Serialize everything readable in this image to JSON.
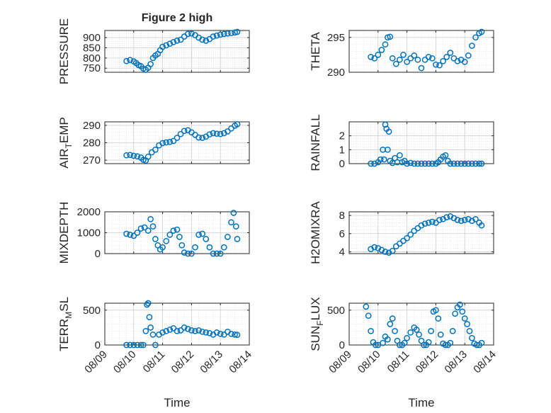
{
  "figure": {
    "title": "Figure 2 high",
    "xlabel": "Time",
    "xticks": [
      "08/09",
      "08/10",
      "08/11",
      "08/12",
      "08/13",
      "08/14"
    ]
  },
  "colors": {
    "marker": "#0072BD",
    "axis": "#262626",
    "grid": "#dcdcdc",
    "background": "#ffffff"
  },
  "chart_data": [
    {
      "type": "scatter",
      "ylabel": "PRESSURE",
      "ylabel_sub": "",
      "ylabel_suffix": "",
      "ylim": [
        730,
        935
      ],
      "yticks": [
        750,
        800,
        850,
        900
      ],
      "grid": true,
      "x": [
        "08/09 18:00",
        "08/09 21:00",
        "08/10 00:00",
        "08/10 02:00",
        "08/10 04:00",
        "08/10 06:00",
        "08/10 08:00",
        "08/10 10:00",
        "08/10 12:00",
        "08/10 14:00",
        "08/10 16:00",
        "08/10 18:00",
        "08/10 20:00",
        "08/10 22:00",
        "08/11 00:00",
        "08/11 03:00",
        "08/11 06:00",
        "08/11 09:00",
        "08/11 12:00",
        "08/11 15:00",
        "08/11 18:00",
        "08/11 21:00",
        "08/12 00:00",
        "08/12 03:00",
        "08/12 06:00",
        "08/12 09:00",
        "08/12 12:00",
        "08/12 15:00",
        "08/12 18:00",
        "08/12 21:00",
        "08/13 00:00",
        "08/13 03:00",
        "08/13 06:00",
        "08/13 09:00",
        "08/13 12:00",
        "08/13 14:00"
      ],
      "y": [
        785,
        790,
        783,
        775,
        765,
        760,
        748,
        742,
        752,
        770,
        800,
        812,
        820,
        838,
        855,
        862,
        870,
        878,
        885,
        890,
        905,
        918,
        920,
        912,
        900,
        890,
        885,
        893,
        905,
        910,
        915,
        918,
        920,
        922,
        925,
        928
      ]
    },
    {
      "type": "scatter",
      "ylabel": "THETA",
      "ylabel_sub": "",
      "ylabel_suffix": "",
      "ylim": [
        290,
        296
      ],
      "yticks": [
        290,
        295
      ],
      "grid": true,
      "x": [
        "08/09 18:00",
        "08/09 21:00",
        "08/10 00:00",
        "08/10 03:00",
        "08/10 06:00",
        "08/10 08:00",
        "08/10 10:00",
        "08/10 12:00",
        "08/10 15:00",
        "08/10 18:00",
        "08/10 21:00",
        "08/11 00:00",
        "08/11 03:00",
        "08/11 06:00",
        "08/11 09:00",
        "08/11 12:00",
        "08/11 15:00",
        "08/11 18:00",
        "08/11 21:00",
        "08/12 00:00",
        "08/12 03:00",
        "08/12 06:00",
        "08/12 09:00",
        "08/12 12:00",
        "08/12 15:00",
        "08/12 18:00",
        "08/12 21:00",
        "08/13 00:00",
        "08/13 03:00",
        "08/13 06:00",
        "08/13 09:00",
        "08/13 12:00",
        "08/13 14:00"
      ],
      "y": [
        292.2,
        292.0,
        292.5,
        293.2,
        294.0,
        295.0,
        295.1,
        292.0,
        291.2,
        291.8,
        292.5,
        291.5,
        292.0,
        292.4,
        291.8,
        290.6,
        291.8,
        292.2,
        292.0,
        291.1,
        291.0,
        291.6,
        292.2,
        292.8,
        292.0,
        291.6,
        291.8,
        291.5,
        292.4,
        293.8,
        295.0,
        295.6,
        295.8
      ]
    },
    {
      "type": "scatter",
      "ylabel": "AIR",
      "ylabel_sub": "T",
      "ylabel_suffix": "EMP",
      "ylim": [
        268,
        292
      ],
      "yticks": [
        270,
        280,
        290
      ],
      "grid": true,
      "x": [
        "08/09 18:00",
        "08/09 21:00",
        "08/10 00:00",
        "08/10 03:00",
        "08/10 06:00",
        "08/10 08:00",
        "08/10 10:00",
        "08/10 12:00",
        "08/10 15:00",
        "08/10 18:00",
        "08/10 21:00",
        "08/11 00:00",
        "08/11 03:00",
        "08/11 06:00",
        "08/11 09:00",
        "08/11 12:00",
        "08/11 15:00",
        "08/11 18:00",
        "08/11 21:00",
        "08/12 00:00",
        "08/12 03:00",
        "08/12 06:00",
        "08/12 09:00",
        "08/12 12:00",
        "08/12 15:00",
        "08/12 18:00",
        "08/12 21:00",
        "08/13 00:00",
        "08/13 03:00",
        "08/13 06:00",
        "08/13 09:00",
        "08/13 12:00",
        "08/13 14:00"
      ],
      "y": [
        272.8,
        273.0,
        272.5,
        272.2,
        271.5,
        270.2,
        269.8,
        272.0,
        274.5,
        276.0,
        278.5,
        279.8,
        280.2,
        280.5,
        281.0,
        282.8,
        285.0,
        286.8,
        287.2,
        286.0,
        284.5,
        283.0,
        282.8,
        283.5,
        284.8,
        285.5,
        285.2,
        285.0,
        285.5,
        286.5,
        288.2,
        289.8,
        290.6
      ]
    },
    {
      "type": "scatter",
      "ylabel": "RAINFALL",
      "ylabel_sub": "",
      "ylabel_suffix": "",
      "ylim": [
        0,
        3
      ],
      "yticks": [
        0,
        1,
        2
      ],
      "grid": true,
      "x": [
        "08/09 18:00",
        "08/09 21:00",
        "08/10 00:00",
        "08/10 02:00",
        "08/10 04:00",
        "08/10 05:00",
        "08/10 06:00",
        "08/10 07:00",
        "08/10 08:00",
        "08/10 09:00",
        "08/10 10:00",
        "08/10 12:00",
        "08/10 14:00",
        "08/10 16:00",
        "08/10 18:00",
        "08/10 20:00",
        "08/10 22:00",
        "08/11 00:00",
        "08/11 03:00",
        "08/11 06:00",
        "08/11 09:00",
        "08/11 12:00",
        "08/11 15:00",
        "08/11 18:00",
        "08/11 21:00",
        "08/12 00:00",
        "08/12 02:00",
        "08/12 04:00",
        "08/12 06:00",
        "08/12 08:00",
        "08/12 10:00",
        "08/12 12:00",
        "08/12 15:00",
        "08/12 18:00",
        "08/12 21:00",
        "08/13 00:00",
        "08/13 03:00",
        "08/13 06:00",
        "08/13 09:00",
        "08/13 12:00",
        "08/13 14:00"
      ],
      "y": [
        0,
        0,
        0.1,
        0.3,
        1.0,
        0.3,
        2.8,
        2.5,
        1.0,
        2.3,
        0.2,
        0.05,
        0.4,
        0.1,
        0.6,
        0.1,
        0.2,
        0,
        0.05,
        0,
        0,
        0,
        0,
        0,
        0,
        0,
        0.1,
        0.3,
        0.5,
        0.6,
        0.2,
        0,
        0,
        0,
        0,
        0,
        0,
        0,
        0,
        0,
        0
      ]
    },
    {
      "type": "scatter",
      "ylabel": "MIXDEPTH",
      "ylabel_sub": "",
      "ylabel_suffix": "",
      "ylim": [
        0,
        2000
      ],
      "yticks": [
        0,
        1000,
        2000
      ],
      "grid": true,
      "x": [
        "08/09 18:00",
        "08/09 21:00",
        "08/10 00:00",
        "08/10 03:00",
        "08/10 06:00",
        "08/10 09:00",
        "08/10 12:00",
        "08/10 14:00",
        "08/10 16:00",
        "08/10 18:00",
        "08/10 20:00",
        "08/10 22:00",
        "08/11 00:00",
        "08/11 03:00",
        "08/11 06:00",
        "08/11 09:00",
        "08/11 12:00",
        "08/11 14:00",
        "08/11 16:00",
        "08/11 18:00",
        "08/11 21:00",
        "08/12 00:00",
        "08/12 03:00",
        "08/12 06:00",
        "08/12 09:00",
        "08/12 12:00",
        "08/12 15:00",
        "08/12 18:00",
        "08/12 21:00",
        "08/13 00:00",
        "08/13 03:00",
        "08/13 06:00",
        "08/13 09:00",
        "08/13 11:00",
        "08/13 13:00",
        "08/13 14:00"
      ],
      "y": [
        950,
        900,
        850,
        1000,
        1200,
        1250,
        1100,
        1650,
        1300,
        700,
        400,
        200,
        300,
        600,
        900,
        1100,
        1150,
        800,
        400,
        50,
        0,
        0,
        300,
        900,
        950,
        700,
        300,
        0,
        0,
        0,
        300,
        800,
        1500,
        1950,
        1300,
        700
      ]
    },
    {
      "type": "scatter",
      "ylabel": "H2OMIXRA",
      "ylabel_sub": "",
      "ylabel_suffix": "",
      "ylim": [
        3.8,
        8.4
      ],
      "yticks": [
        4,
        6,
        8
      ],
      "grid": true,
      "x": [
        "08/09 18:00",
        "08/09 21:00",
        "08/10 00:00",
        "08/10 03:00",
        "08/10 06:00",
        "08/10 09:00",
        "08/10 12:00",
        "08/10 15:00",
        "08/10 18:00",
        "08/10 21:00",
        "08/11 00:00",
        "08/11 03:00",
        "08/11 06:00",
        "08/11 09:00",
        "08/11 12:00",
        "08/11 15:00",
        "08/11 18:00",
        "08/11 21:00",
        "08/12 00:00",
        "08/12 03:00",
        "08/12 06:00",
        "08/12 09:00",
        "08/12 12:00",
        "08/12 15:00",
        "08/12 18:00",
        "08/12 21:00",
        "08/13 00:00",
        "08/13 03:00",
        "08/13 06:00",
        "08/13 09:00",
        "08/13 12:00",
        "08/13 14:00"
      ],
      "y": [
        4.3,
        4.5,
        4.4,
        4.2,
        4.0,
        3.9,
        4.1,
        4.6,
        4.9,
        5.2,
        5.5,
        5.9,
        6.3,
        6.6,
        6.9,
        7.1,
        7.2,
        7.3,
        7.2,
        7.5,
        7.6,
        7.8,
        7.9,
        7.7,
        7.5,
        7.4,
        7.5,
        7.6,
        7.4,
        7.6,
        7.2,
        6.9
      ]
    },
    {
      "type": "scatter",
      "ylabel": "TERR",
      "ylabel_sub": "M",
      "ylabel_suffix": "SL",
      "ylim": [
        0,
        600
      ],
      "yticks": [
        0,
        500
      ],
      "grid": true,
      "x": [
        "08/09 18:00",
        "08/09 21:00",
        "08/10 00:00",
        "08/10 03:00",
        "08/10 06:00",
        "08/10 08:00",
        "08/10 10:00",
        "08/10 11:00",
        "08/10 12:00",
        "08/10 13:00",
        "08/10 14:00",
        "08/10 16:00",
        "08/10 18:00",
        "08/10 21:00",
        "08/11 00:00",
        "08/11 03:00",
        "08/11 06:00",
        "08/11 09:00",
        "08/11 12:00",
        "08/11 15:00",
        "08/11 18:00",
        "08/11 21:00",
        "08/12 00:00",
        "08/12 03:00",
        "08/12 06:00",
        "08/12 09:00",
        "08/12 12:00",
        "08/12 15:00",
        "08/12 18:00",
        "08/12 21:00",
        "08/13 00:00",
        "08/13 03:00",
        "08/13 06:00",
        "08/13 09:00",
        "08/13 12:00",
        "08/13 14:00"
      ],
      "y": [
        0,
        0,
        0,
        0,
        0,
        0,
        200,
        580,
        600,
        400,
        250,
        150,
        0,
        150,
        180,
        200,
        220,
        240,
        200,
        210,
        250,
        230,
        210,
        200,
        210,
        190,
        180,
        170,
        150,
        180,
        160,
        150,
        190,
        160,
        150,
        145
      ]
    },
    {
      "type": "scatter",
      "ylabel": "SUN",
      "ylabel_sub": "F",
      "ylabel_suffix": "LUX",
      "ylim": [
        0,
        600
      ],
      "yticks": [
        0,
        500
      ],
      "grid": true,
      "x": [
        "08/09 14:00",
        "08/09 16:00",
        "08/09 18:00",
        "08/09 20:00",
        "08/09 22:00",
        "08/10 00:00",
        "08/10 04:00",
        "08/10 06:00",
        "08/10 08:00",
        "08/10 10:00",
        "08/10 12:00",
        "08/10 14:00",
        "08/10 16:00",
        "08/10 18:00",
        "08/10 20:00",
        "08/10 22:00",
        "08/11 00:00",
        "08/11 03:00",
        "08/11 06:00",
        "08/11 08:00",
        "08/11 10:00",
        "08/11 12:00",
        "08/11 14:00",
        "08/11 16:00",
        "08/11 18:00",
        "08/11 20:00",
        "08/11 22:00",
        "08/12 00:00",
        "08/12 02:00",
        "08/12 04:00",
        "08/12 06:00",
        "08/12 08:00",
        "08/12 10:00",
        "08/12 12:00",
        "08/12 14:00",
        "08/12 16:00",
        "08/12 18:00",
        "08/12 20:00",
        "08/12 22:00",
        "08/13 00:00",
        "08/13 02:00",
        "08/13 04:00",
        "08/13 06:00",
        "08/13 08:00",
        "08/13 10:00",
        "08/13 12:00",
        "08/13 14:00"
      ],
      "y": [
        550,
        420,
        200,
        40,
        0,
        0,
        30,
        120,
        80,
        300,
        380,
        200,
        60,
        0,
        0,
        30,
        100,
        180,
        250,
        220,
        150,
        60,
        0,
        0,
        40,
        200,
        480,
        500,
        380,
        150,
        20,
        0,
        0,
        30,
        200,
        450,
        540,
        580,
        480,
        380,
        300,
        200,
        100,
        20,
        0,
        0,
        30
      ]
    }
  ]
}
